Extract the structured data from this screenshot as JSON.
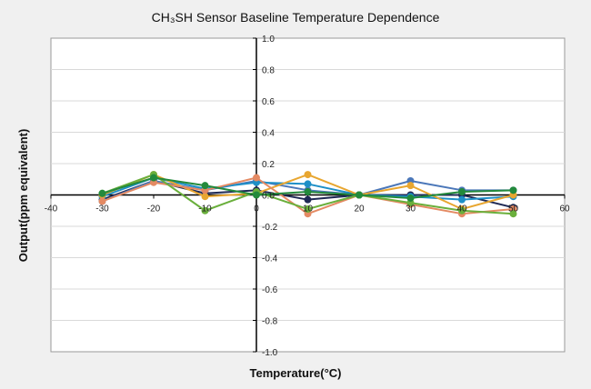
{
  "chart_data": {
    "type": "line",
    "title": "CH₃SH Sensor Baseline Temperature Dependence",
    "xlabel": "Temperature(°C)",
    "ylabel": "Output(ppm equivalent)",
    "xlim": [
      -40,
      60
    ],
    "ylim": [
      -1.0,
      1.0
    ],
    "x_ticks": [
      -40,
      -30,
      -20,
      -10,
      0,
      10,
      20,
      30,
      40,
      50,
      60
    ],
    "y_ticks": [
      -1.0,
      -0.8,
      -0.6,
      -0.4,
      -0.2,
      0.0,
      0.2,
      0.4,
      0.6,
      0.8,
      1.0
    ],
    "x_tick_labels": [
      "-40",
      "-30",
      "-20",
      "-10",
      "0",
      "10",
      "20",
      "30",
      "40",
      "50",
      "60"
    ],
    "y_tick_labels": [
      "-1.0",
      "-0.8",
      "-0.6",
      "-0.4",
      "-0.2",
      "0.0",
      "0.2",
      "0.4",
      "0.6",
      "0.8",
      "1.0"
    ],
    "grid": true,
    "x": [
      -30,
      -20,
      -10,
      0,
      10,
      20,
      30,
      40,
      50
    ],
    "series": [
      {
        "color": "#1f2a55",
        "values": [
          -0.03,
          0.09,
          0.01,
          0.03,
          -0.03,
          0.0,
          0.0,
          0.0,
          -0.08
        ]
      },
      {
        "color": "#4b77b9",
        "values": [
          -0.04,
          0.09,
          0.03,
          0.09,
          0.03,
          0.0,
          0.09,
          0.03,
          0.03
        ]
      },
      {
        "color": "#1e8fc7",
        "values": [
          -0.01,
          0.11,
          0.04,
          0.08,
          0.07,
          0.0,
          -0.01,
          -0.03,
          -0.01
        ]
      },
      {
        "color": "#e8a630",
        "values": [
          0.0,
          0.13,
          -0.01,
          0.01,
          0.13,
          0.0,
          0.06,
          -0.09,
          0.0
        ]
      },
      {
        "color": "#e48a63",
        "values": [
          -0.04,
          0.08,
          0.03,
          0.11,
          -0.12,
          0.0,
          -0.06,
          -0.12,
          -0.09
        ]
      },
      {
        "color": "#6aaf3c",
        "values": [
          0.01,
          0.13,
          -0.1,
          0.02,
          -0.09,
          0.0,
          -0.05,
          -0.1,
          -0.12
        ]
      },
      {
        "color": "#238a3c",
        "values": [
          0.01,
          0.11,
          0.06,
          0.0,
          0.02,
          0.0,
          -0.02,
          0.02,
          0.03
        ]
      }
    ]
  }
}
